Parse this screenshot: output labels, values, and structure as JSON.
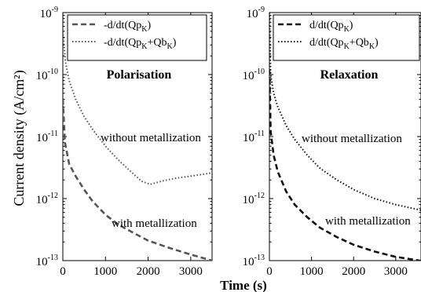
{
  "figure": {
    "ylabel": "Current density (A/cm²)",
    "xlabel": "Time (s)"
  },
  "chart_data": [
    {
      "type": "line",
      "title": "Polarisation",
      "xlim": [
        0,
        3500
      ],
      "ylim": [
        1e-13,
        1e-09
      ],
      "yscale": "log",
      "x_ticks": [
        0,
        1000,
        2000,
        3000
      ],
      "x_tick_labels": [
        "0",
        "1000",
        "2000",
        "3000"
      ],
      "y_ticks": [
        1e-13,
        1e-12,
        1e-11,
        1e-10,
        1e-09
      ],
      "y_tick_labels": [
        {
          "base": "10",
          "exp": "-13"
        },
        {
          "base": "10",
          "exp": "-12"
        },
        {
          "base": "10",
          "exp": "-11"
        },
        {
          "base": "10",
          "exp": "-10"
        },
        {
          "base": "10",
          "exp": "-9"
        }
      ],
      "legend": {
        "placement": "top",
        "entries": [
          {
            "style": "dashed",
            "text": "-d/dt(Qp",
            "sub": "K",
            "text2": ")",
            "sub2": "",
            "text3": ""
          },
          {
            "style": "dotted",
            "text": "-d/dt(Qp",
            "sub": "K",
            "text2": "+Qb",
            "sub2": "K",
            "text3": ")"
          }
        ]
      },
      "annotations": [
        "without metallization",
        "with metallization"
      ],
      "series": [
        {
          "style": "dotted",
          "color": "#555555",
          "x": [
            0,
            60,
            150,
            300,
            500,
            700,
            1000,
            1300,
            1600,
            1850,
            2050,
            2300,
            2600,
            3000,
            3500
          ],
          "y": [
            5e-10,
            1.6e-10,
            8e-11,
            4e-11,
            2.1e-11,
            1.3e-11,
            7e-12,
            4.2e-12,
            2.7e-12,
            1.9e-12,
            1.7e-12,
            1.9e-12,
            2.1e-12,
            2.3e-12,
            2.6e-12
          ]
        },
        {
          "style": "dashed",
          "color": "#555555",
          "x": [
            0,
            50,
            150,
            300,
            500,
            700,
            1000,
            1300,
            1700,
            2000,
            2500,
            3000,
            3500
          ],
          "y": [
            4e-11,
            8e-12,
            3.6e-12,
            2.3e-12,
            1.4e-12,
            9e-13,
            5.5e-13,
            3.8e-13,
            2.7e-13,
            2.1e-13,
            1.6e-13,
            1.25e-13,
            1e-13
          ]
        }
      ]
    },
    {
      "type": "line",
      "title": "Relaxation",
      "xlim": [
        0,
        3600
      ],
      "ylim": [
        1e-13,
        1e-09
      ],
      "yscale": "log",
      "x_ticks": [
        0,
        1000,
        2000,
        3000
      ],
      "x_tick_labels": [
        "0",
        "1000",
        "2000",
        "3000"
      ],
      "y_ticks": [
        1e-13,
        1e-12,
        1e-11,
        1e-10,
        1e-09
      ],
      "y_tick_labels": [
        {
          "base": "10",
          "exp": "-13"
        },
        {
          "base": "10",
          "exp": "-12"
        },
        {
          "base": "10",
          "exp": "-11"
        },
        {
          "base": "10",
          "exp": "-10"
        },
        {
          "base": "10",
          "exp": "-9"
        }
      ],
      "legend": {
        "placement": "top",
        "entries": [
          {
            "style": "dashed",
            "text": "d/dt(Qp",
            "sub": "K",
            "text2": ")",
            "sub2": "",
            "text3": ""
          },
          {
            "style": "dotted",
            "text": "d/dt(Qp",
            "sub": "K",
            "text2": "+Qb",
            "sub2": "K",
            "text3": ")"
          }
        ]
      },
      "annotations": [
        "without metallization",
        "with metallization"
      ],
      "series": [
        {
          "style": "dotted",
          "color": "#111111",
          "x": [
            0,
            30,
            100,
            200,
            400,
            600,
            900,
            1200,
            1600,
            2000,
            2500,
            3000,
            3600
          ],
          "y": [
            1e-09,
            1e-10,
            5e-11,
            3e-11,
            1.5e-11,
            9e-12,
            5e-12,
            3.1e-12,
            2e-12,
            1.4e-12,
            1e-12,
            8e-13,
            6.5e-13
          ]
        },
        {
          "style": "dashed",
          "color": "#111111",
          "x": [
            0,
            30,
            100,
            200,
            400,
            600,
            900,
            1200,
            1600,
            2000,
            2500,
            3000,
            3600
          ],
          "y": [
            1.2e-10,
            1.2e-11,
            5e-12,
            2.7e-12,
            1.3e-12,
            8e-13,
            5e-13,
            3.4e-13,
            2.4e-13,
            1.8e-13,
            1.4e-13,
            1.15e-13,
            9.5e-14
          ]
        }
      ]
    }
  ]
}
